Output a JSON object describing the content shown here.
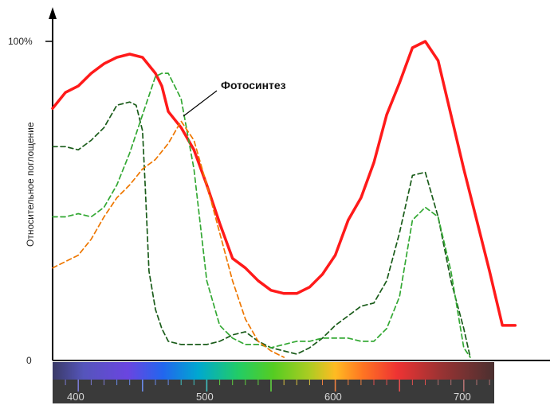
{
  "chart_data": {
    "type": "line",
    "ylabel": "Относительное поглощение",
    "y_ticks": [
      "100%",
      "0"
    ],
    "ylim": [
      0,
      100
    ],
    "annotation": "Фотосинтез",
    "spectrum_labels": [
      "400",
      "500",
      "600",
      "700"
    ],
    "xlim": [
      380,
      750
    ],
    "grid": false,
    "series": [
      {
        "name": "Фотосинтез",
        "color": "#ff1a1a",
        "style": "solid",
        "x": [
          380,
          390,
          400,
          410,
          420,
          430,
          440,
          450,
          460,
          465,
          470,
          480,
          490,
          500,
          510,
          520,
          530,
          540,
          550,
          560,
          570,
          580,
          590,
          600,
          610,
          620,
          630,
          640,
          650,
          660,
          670,
          680,
          690,
          700,
          710,
          720,
          730,
          740
        ],
        "y": [
          79,
          84,
          86,
          90,
          93,
          95,
          96,
          95,
          90,
          86,
          78,
          73,
          66,
          55,
          43,
          32,
          29,
          25,
          22,
          21,
          21,
          23,
          27,
          33,
          44,
          51,
          62,
          77,
          87,
          98,
          100,
          94,
          77,
          60,
          44,
          28,
          11,
          11
        ]
      },
      {
        "x": [
          380,
          390,
          400,
          410,
          420,
          430,
          440,
          445,
          450,
          452,
          455,
          460,
          465,
          470,
          480,
          490,
          500,
          510,
          520,
          530,
          540,
          550,
          560,
          570,
          580,
          590,
          600,
          610,
          620,
          630,
          640,
          650,
          660,
          670,
          680,
          690,
          700,
          705
        ],
        "y": [
          67,
          67,
          66,
          69,
          73,
          80,
          81,
          80,
          72,
          55,
          28,
          16,
          10,
          6,
          5,
          5,
          5,
          6,
          8,
          9,
          6,
          4,
          3,
          2,
          4,
          7,
          11,
          14,
          17,
          18,
          25,
          40,
          58,
          59,
          45,
          25,
          10,
          1
        ],
        "color": "#1a5c1a",
        "style": "dashed"
      },
      {
        "x": [
          380,
          390,
          400,
          410,
          420,
          430,
          440,
          450,
          455,
          460,
          465,
          470,
          480,
          490,
          500,
          510,
          520,
          530,
          540,
          550,
          560,
          570,
          580,
          590,
          600,
          610,
          620,
          630,
          640,
          650,
          660,
          670,
          680,
          690,
          700,
          705
        ],
        "y": [
          45,
          45,
          46,
          45,
          48,
          55,
          65,
          77,
          83,
          89,
          90,
          90,
          82,
          60,
          25,
          11,
          7,
          5,
          5,
          4,
          5,
          6,
          6,
          7,
          7,
          7,
          6,
          6,
          10,
          20,
          44,
          48,
          45,
          28,
          4,
          1
        ],
        "color": "#33a833",
        "style": "dashed"
      },
      {
        "x": [
          380,
          390,
          400,
          410,
          420,
          430,
          440,
          450,
          460,
          470,
          480,
          490,
          500,
          510,
          520,
          530,
          540,
          550,
          560
        ],
        "y": [
          29,
          31,
          33,
          38,
          45,
          51,
          55,
          60,
          63,
          68,
          75,
          69,
          55,
          40,
          25,
          13,
          6,
          3,
          1
        ],
        "color": "#ee7700",
        "style": "dashed"
      }
    ]
  },
  "colors": {
    "axis": "#000000",
    "spectrum_bar_bg": "#3a3a3a"
  }
}
